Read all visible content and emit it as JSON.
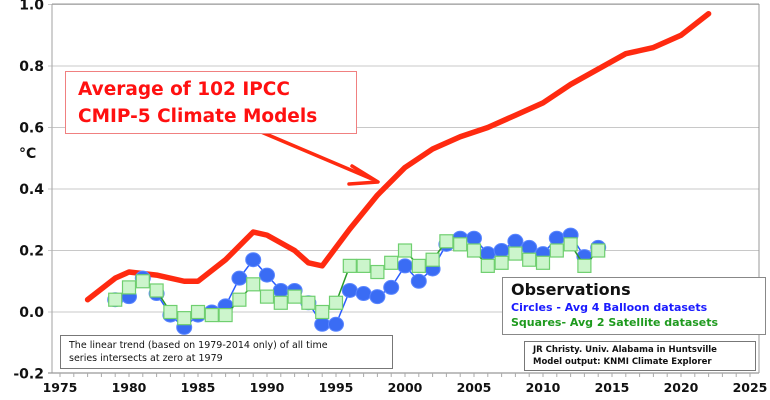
{
  "chart_data": {
    "type": "line",
    "title": "",
    "xlabel": "",
    "ylabel": "°C",
    "xlim": [
      1975,
      2025
    ],
    "ylim": [
      -0.2,
      1.0
    ],
    "xticks": [
      1975,
      1980,
      1985,
      1990,
      1995,
      2000,
      2005,
      2010,
      2015,
      2020,
      2025
    ],
    "yticks": [
      -0.2,
      0.0,
      0.2,
      0.4,
      0.6,
      0.8,
      1.0
    ],
    "ytick_labels": [
      "-0.2",
      "0.0",
      "0.2",
      "0.4",
      "0.6",
      "0.8",
      "1.0"
    ],
    "grid": "horizontal",
    "series": [
      {
        "name": "Average of 102 IPCC CMIP-5 Climate Models",
        "color": "#ff2a10",
        "marker": "none",
        "x": [
          1977,
          1979,
          1980,
          1982,
          1984,
          1985,
          1987,
          1989,
          1990,
          1992,
          1993,
          1994,
          1996,
          1998,
          2000,
          2002,
          2004,
          2006,
          2008,
          2010,
          2012,
          2014,
          2016,
          2017,
          2018,
          2020,
          2022
        ],
        "values": [
          0.04,
          0.11,
          0.13,
          0.12,
          0.1,
          0.1,
          0.17,
          0.26,
          0.25,
          0.2,
          0.16,
          0.15,
          0.27,
          0.38,
          0.47,
          0.53,
          0.57,
          0.6,
          0.64,
          0.68,
          0.74,
          0.79,
          0.84,
          0.85,
          0.86,
          0.9,
          0.97
        ]
      },
      {
        "name": "Circles - Avg 4 Balloon datasets",
        "color": "#2a5cff",
        "marker": "circle",
        "x": [
          1979,
          1980,
          1981,
          1982,
          1983,
          1984,
          1985,
          1986,
          1987,
          1988,
          1989,
          1990,
          1991,
          1992,
          1993,
          1994,
          1995,
          1996,
          1997,
          1998,
          1999,
          2000,
          2001,
          2002,
          2003,
          2004,
          2005,
          2006,
          2007,
          2008,
          2009,
          2010,
          2011,
          2012,
          2013,
          2014
        ],
        "values": [
          0.04,
          0.05,
          0.11,
          0.06,
          -0.01,
          -0.05,
          -0.01,
          0.0,
          0.02,
          0.11,
          0.17,
          0.12,
          0.07,
          0.07,
          0.03,
          -0.04,
          -0.04,
          0.07,
          0.06,
          0.05,
          0.08,
          0.15,
          0.1,
          0.14,
          0.22,
          0.24,
          0.24,
          0.19,
          0.2,
          0.23,
          0.21,
          0.19,
          0.24,
          0.25,
          0.18,
          0.21
        ]
      },
      {
        "name": "Squares- Avg 2 Satellite datasets",
        "color": "#2a9a2a",
        "marker": "square",
        "x": [
          1979,
          1980,
          1981,
          1982,
          1983,
          1984,
          1985,
          1986,
          1987,
          1988,
          1989,
          1990,
          1991,
          1992,
          1993,
          1994,
          1995,
          1996,
          1997,
          1998,
          1999,
          2000,
          2001,
          2002,
          2003,
          2004,
          2005,
          2006,
          2007,
          2008,
          2009,
          2010,
          2011,
          2012,
          2013,
          2014
        ],
        "values": [
          0.04,
          0.08,
          0.1,
          0.07,
          0.0,
          -0.02,
          0.0,
          -0.01,
          -0.01,
          0.04,
          0.09,
          0.05,
          0.03,
          0.05,
          0.03,
          0.0,
          0.03,
          0.15,
          0.15,
          0.13,
          0.16,
          0.2,
          0.15,
          0.17,
          0.23,
          0.22,
          0.2,
          0.15,
          0.16,
          0.19,
          0.17,
          0.16,
          0.2,
          0.22,
          0.15,
          0.2
        ]
      }
    ],
    "annotations": {
      "model_label_line1": "Average of 102 IPCC",
      "model_label_line2": "CMIP-5 Climate Models",
      "observations_title": "Observations",
      "observations_circles": "Circles - Avg 4 Balloon datasets",
      "observations_squares": "Squares- Avg 2 Satellite datasets",
      "trend_note_line1": "The linear trend (based on 1979-2014 only) of all time",
      "trend_note_line2": "series intersects at zero at 1979",
      "credit_line1": "JR Christy. Univ. Alabama in Huntsville",
      "credit_line2": "Model output: KNMI Climate Explorer"
    }
  }
}
